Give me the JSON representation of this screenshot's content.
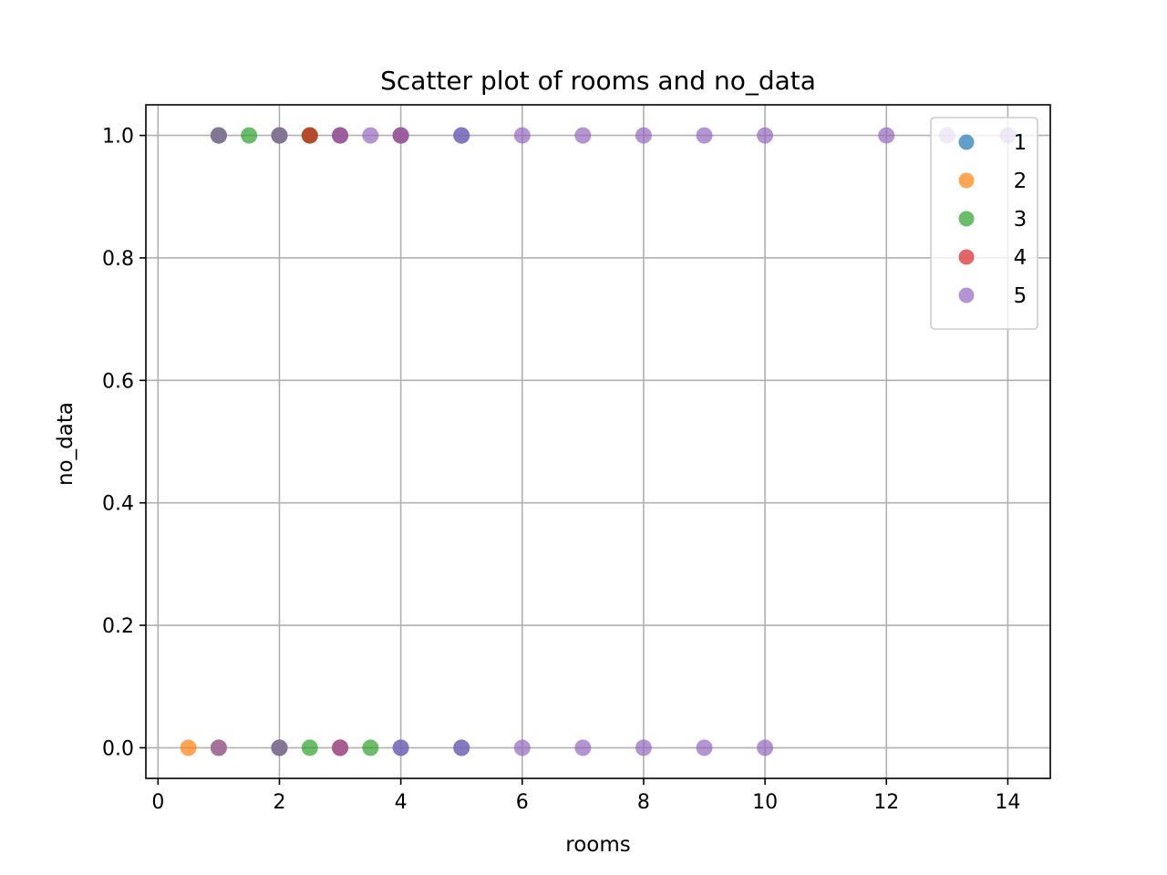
{
  "chart_data": {
    "type": "scatter",
    "title": "Scatter plot of rooms and no_data",
    "xlabel": "rooms",
    "ylabel": "no_data",
    "xlim": [
      -0.2,
      14.7
    ],
    "ylim": [
      -0.05,
      1.05
    ],
    "xticks": [
      0,
      2,
      4,
      6,
      8,
      10,
      12,
      14
    ],
    "xtick_labels": [
      "0",
      "2",
      "4",
      "6",
      "8",
      "10",
      "12",
      "14"
    ],
    "yticks": [
      0.0,
      0.2,
      0.4,
      0.6,
      0.8,
      1.0
    ],
    "ytick_labels": [
      "0.0",
      "0.2",
      "0.4",
      "0.6",
      "0.8",
      "1.0"
    ],
    "grid": true,
    "legend_position": "top-right",
    "marker_opacity": 0.7,
    "series": [
      {
        "name": "1",
        "color": "#1f77b4",
        "points": [
          {
            "x": 1,
            "y": 1
          },
          {
            "x": 2,
            "y": 1
          },
          {
            "x": 3,
            "y": 1
          },
          {
            "x": 4,
            "y": 1
          },
          {
            "x": 5,
            "y": 1
          },
          {
            "x": 1,
            "y": 0
          },
          {
            "x": 2,
            "y": 0
          },
          {
            "x": 3,
            "y": 0
          },
          {
            "x": 4,
            "y": 0
          },
          {
            "x": 5,
            "y": 0
          }
        ]
      },
      {
        "name": "2",
        "color": "#ff7f0e",
        "points": [
          {
            "x": 0.5,
            "y": 0
          },
          {
            "x": 1,
            "y": 0
          },
          {
            "x": 2.5,
            "y": 1
          },
          {
            "x": 1,
            "y": 1
          },
          {
            "x": 2,
            "y": 1
          },
          {
            "x": 2,
            "y": 0
          },
          {
            "x": 3,
            "y": 0
          }
        ]
      },
      {
        "name": "3",
        "color": "#2ca02c",
        "points": [
          {
            "x": 1.5,
            "y": 1
          },
          {
            "x": 2.5,
            "y": 1
          },
          {
            "x": 2.5,
            "y": 0
          },
          {
            "x": 3.5,
            "y": 0
          },
          {
            "x": 1,
            "y": 1
          },
          {
            "x": 2,
            "y": 1
          },
          {
            "x": 2,
            "y": 0
          }
        ]
      },
      {
        "name": "4",
        "color": "#d62728",
        "points": [
          {
            "x": 2.5,
            "y": 1
          },
          {
            "x": 3,
            "y": 1
          },
          {
            "x": 4,
            "y": 1
          },
          {
            "x": 3,
            "y": 0
          }
        ]
      },
      {
        "name": "5",
        "color": "#9467bd",
        "points": [
          {
            "x": 1,
            "y": 1
          },
          {
            "x": 2,
            "y": 1
          },
          {
            "x": 3,
            "y": 1
          },
          {
            "x": 3.5,
            "y": 1
          },
          {
            "x": 4,
            "y": 1
          },
          {
            "x": 5,
            "y": 1
          },
          {
            "x": 6,
            "y": 1
          },
          {
            "x": 7,
            "y": 1
          },
          {
            "x": 8,
            "y": 1
          },
          {
            "x": 9,
            "y": 1
          },
          {
            "x": 10,
            "y": 1
          },
          {
            "x": 12,
            "y": 1
          },
          {
            "x": 13,
            "y": 1
          },
          {
            "x": 14,
            "y": 1
          },
          {
            "x": 1,
            "y": 0
          },
          {
            "x": 2,
            "y": 0
          },
          {
            "x": 3,
            "y": 0
          },
          {
            "x": 4,
            "y": 0
          },
          {
            "x": 5,
            "y": 0
          },
          {
            "x": 6,
            "y": 0
          },
          {
            "x": 7,
            "y": 0
          },
          {
            "x": 8,
            "y": 0
          },
          {
            "x": 9,
            "y": 0
          },
          {
            "x": 10,
            "y": 0
          }
        ]
      }
    ]
  }
}
